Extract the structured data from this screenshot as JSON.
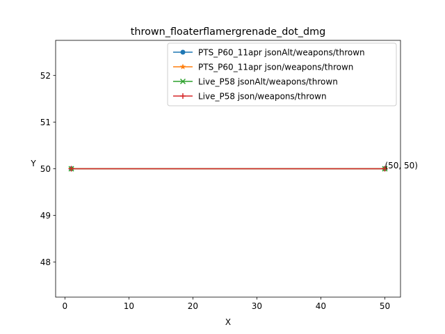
{
  "chart_data": {
    "type": "line",
    "title": "thrown_floaterflamergrenade_dot_dmg",
    "xlabel": "X",
    "ylabel": "Y",
    "xlim": [
      -1.45,
      52.45
    ],
    "ylim": [
      47.25,
      52.75
    ],
    "xticks": [
      0,
      10,
      20,
      30,
      40,
      50
    ],
    "yticks": [
      48,
      49,
      50,
      51,
      52
    ],
    "grid": false,
    "legend_position": "top-right",
    "series": [
      {
        "name": "PTS_P60_11apr jsonAlt/weapons/thrown",
        "color": "#1f77b4",
        "marker": "circle",
        "x": [
          1,
          50
        ],
        "y": [
          50,
          50
        ]
      },
      {
        "name": "PTS_P60_11apr json/weapons/thrown",
        "color": "#ff7f0e",
        "marker": "star",
        "x": [
          1,
          50
        ],
        "y": [
          50,
          50
        ]
      },
      {
        "name": "Live_P58 jsonAlt/weapons/thrown",
        "color": "#2ca02c",
        "marker": "x",
        "x": [
          1,
          50
        ],
        "y": [
          50,
          50
        ]
      },
      {
        "name": "Live_P58 json/weapons/thrown",
        "color": "#d62728",
        "marker": "plus",
        "x": [
          1,
          50
        ],
        "y": [
          50,
          50
        ]
      }
    ],
    "annotations": [
      {
        "text": "(50, 50)",
        "x": 50,
        "y": 50
      }
    ]
  }
}
